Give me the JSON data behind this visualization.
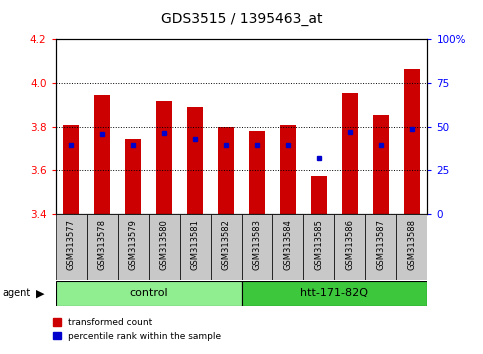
{
  "title": "GDS3515 / 1395463_at",
  "samples": [
    "GSM313577",
    "GSM313578",
    "GSM313579",
    "GSM313580",
    "GSM313581",
    "GSM313582",
    "GSM313583",
    "GSM313584",
    "GSM313585",
    "GSM313586",
    "GSM313587",
    "GSM313588"
  ],
  "bar_values": [
    3.805,
    3.945,
    3.745,
    3.915,
    3.89,
    3.8,
    3.78,
    3.805,
    3.575,
    3.955,
    3.855,
    4.065
  ],
  "blue_dot_values": [
    3.715,
    3.765,
    3.715,
    3.77,
    3.745,
    3.715,
    3.715,
    3.715,
    3.655,
    3.775,
    3.715,
    3.79
  ],
  "ylim": [
    3.4,
    4.2
  ],
  "y_ticks_left": [
    3.4,
    3.6,
    3.8,
    4.0,
    4.2
  ],
  "y_ticks_right": [
    0,
    25,
    50,
    75,
    100
  ],
  "y_right_labels": [
    "0",
    "25",
    "50",
    "75",
    "100%"
  ],
  "groups": [
    {
      "label": "control",
      "start": 0,
      "end": 6,
      "color": "#90EE90"
    },
    {
      "label": "htt-171-82Q",
      "start": 6,
      "end": 12,
      "color": "#3CC73C"
    }
  ],
  "bar_color": "#CC0000",
  "blue_color": "#0000CC",
  "label_bg": "#C8C8C8",
  "agent_label": "agent",
  "legend_red": "transformed count",
  "legend_blue": "percentile rank within the sample",
  "title_fontsize": 10,
  "tick_fontsize": 7.5,
  "bar_width": 0.5
}
